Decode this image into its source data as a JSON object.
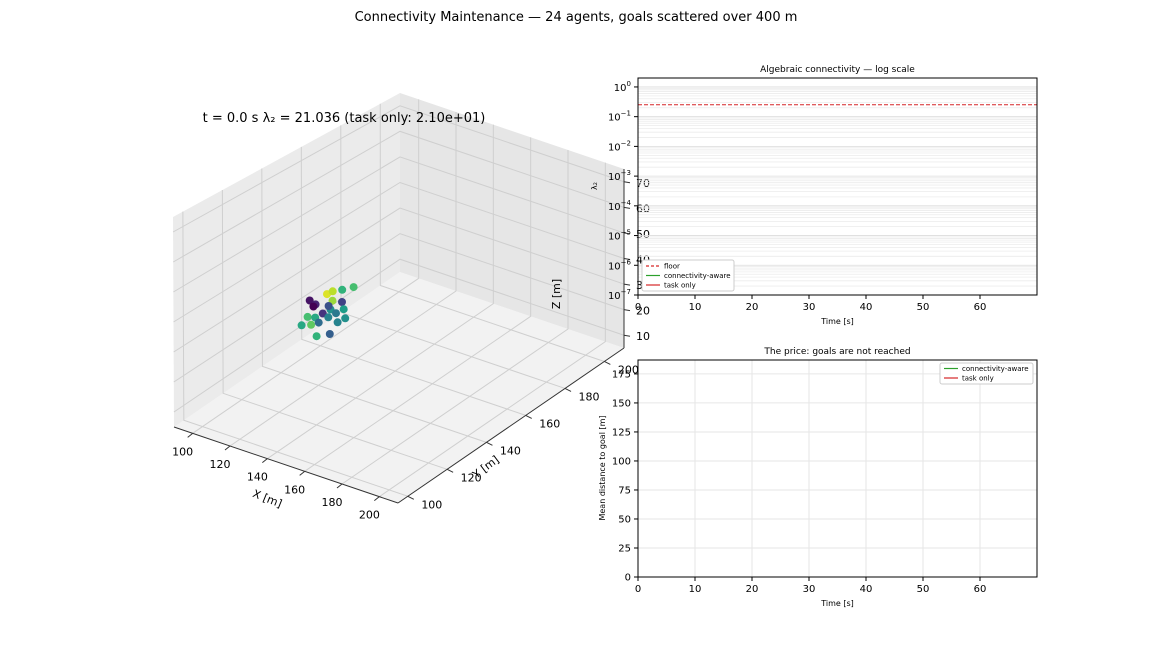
{
  "figure": {
    "title": "Connectivity Maintenance — 24 agents, goals scattered over 400 m"
  },
  "chart_data": [
    {
      "type": "scatter",
      "panel": "3d",
      "title": "t = 0.0 s    λ₂ = 21.036 (task only: 2.10e+01)",
      "xlabel": "X [m]",
      "ylabel": "Y [m]",
      "zlabel": "Z [m]",
      "xlim": [
        90,
        210
      ],
      "ylim": [
        95,
        210
      ],
      "zlim": [
        5,
        75
      ],
      "xticks": [
        100,
        120,
        140,
        160,
        180,
        200
      ],
      "yticks": [
        100,
        120,
        140,
        160,
        180,
        200
      ],
      "zticks": [
        10,
        20,
        30,
        40,
        50,
        60,
        70
      ],
      "xtick_labels": [
        "100",
        "120",
        "140",
        "160",
        "180",
        "200"
      ],
      "ytick_labels": [
        "100",
        "120",
        "140",
        "160",
        "180",
        "200"
      ],
      "ztick_labels": [
        "10",
        "20",
        "30",
        "40",
        "50",
        "60",
        "70"
      ],
      "grid": true,
      "colormap": "viridis",
      "points": [
        {
          "x": 125,
          "y": 131,
          "z": 40,
          "c": 0.05
        },
        {
          "x": 126,
          "y": 133,
          "z": 38,
          "c": 0.1
        },
        {
          "x": 128,
          "y": 130,
          "z": 39,
          "c": 0.0
        },
        {
          "x": 129,
          "y": 136,
          "z": 41,
          "c": 0.95
        },
        {
          "x": 131,
          "y": 137,
          "z": 42,
          "c": 0.9
        },
        {
          "x": 133,
          "y": 135,
          "z": 40,
          "c": 0.85
        },
        {
          "x": 127,
          "y": 128,
          "z": 36,
          "c": 0.7
        },
        {
          "x": 130,
          "y": 129,
          "z": 36,
          "c": 0.6
        },
        {
          "x": 132,
          "y": 131,
          "z": 37,
          "c": 0.15
        },
        {
          "x": 134,
          "y": 133,
          "z": 38,
          "c": 0.5
        },
        {
          "x": 136,
          "y": 130,
          "z": 37,
          "c": 0.45
        },
        {
          "x": 138,
          "y": 132,
          "z": 38,
          "c": 0.4
        },
        {
          "x": 135,
          "y": 138,
          "z": 43,
          "c": 0.65
        },
        {
          "x": 137,
          "y": 136,
          "z": 40,
          "c": 0.2
        },
        {
          "x": 140,
          "y": 134,
          "z": 39,
          "c": 0.55
        },
        {
          "x": 131,
          "y": 126,
          "z": 35,
          "c": 0.75
        },
        {
          "x": 134,
          "y": 127,
          "z": 36,
          "c": 0.35
        },
        {
          "x": 142,
          "y": 129,
          "z": 37,
          "c": 0.45
        },
        {
          "x": 144,
          "y": 131,
          "z": 38,
          "c": 0.5
        },
        {
          "x": 139,
          "y": 140,
          "z": 44,
          "c": 0.7
        },
        {
          "x": 128,
          "y": 124,
          "z": 35,
          "c": 0.6
        },
        {
          "x": 141,
          "y": 126,
          "z": 34,
          "c": 0.3
        },
        {
          "x": 136,
          "y": 124,
          "z": 33,
          "c": 0.65
        },
        {
          "x": 133,
          "y": 133,
          "z": 39,
          "c": 0.25
        }
      ]
    },
    {
      "type": "line",
      "panel": "top-right",
      "title": "Algebraic connectivity — log scale",
      "xlabel": "Time [s]",
      "ylabel": "λ₂",
      "yscale": "log",
      "xlim": [
        0,
        70
      ],
      "ylim": [
        1e-07,
        2
      ],
      "xticks": [
        0,
        10,
        20,
        30,
        40,
        50,
        60
      ],
      "xtick_labels": [
        "0",
        "10",
        "20",
        "30",
        "40",
        "50",
        "60"
      ],
      "ytick_exponents": [
        0,
        -1,
        -2,
        -3,
        -4,
        -5,
        -6,
        -7
      ],
      "grid": true,
      "legend_position": "lower-left",
      "series": [
        {
          "name": "floor",
          "style": "dashed",
          "color": "#d62728",
          "x": [
            0,
            70
          ],
          "y": [
            0.25,
            0.25
          ]
        },
        {
          "name": "connectivity-aware",
          "color": "#2ca02c",
          "x": [],
          "y": []
        },
        {
          "name": "task only",
          "color": "#d62728",
          "x": [],
          "y": []
        }
      ]
    },
    {
      "type": "line",
      "panel": "bottom-right",
      "title": "The price: goals are not reached",
      "xlabel": "Time [s]",
      "ylabel": "Mean distance to goal [m]",
      "xlim": [
        0,
        70
      ],
      "ylim": [
        0,
        187
      ],
      "xticks": [
        0,
        10,
        20,
        30,
        40,
        50,
        60
      ],
      "yticks": [
        0,
        25,
        50,
        75,
        100,
        125,
        150,
        175
      ],
      "xtick_labels": [
        "0",
        "10",
        "20",
        "30",
        "40",
        "50",
        "60"
      ],
      "ytick_labels": [
        "0",
        "25",
        "50",
        "75",
        "100",
        "125",
        "150",
        "175"
      ],
      "grid": true,
      "legend_position": "upper-right",
      "series": [
        {
          "name": "connectivity-aware",
          "color": "#2ca02c",
          "x": [],
          "y": []
        },
        {
          "name": "task only",
          "color": "#d62728",
          "x": [],
          "y": []
        }
      ]
    }
  ]
}
